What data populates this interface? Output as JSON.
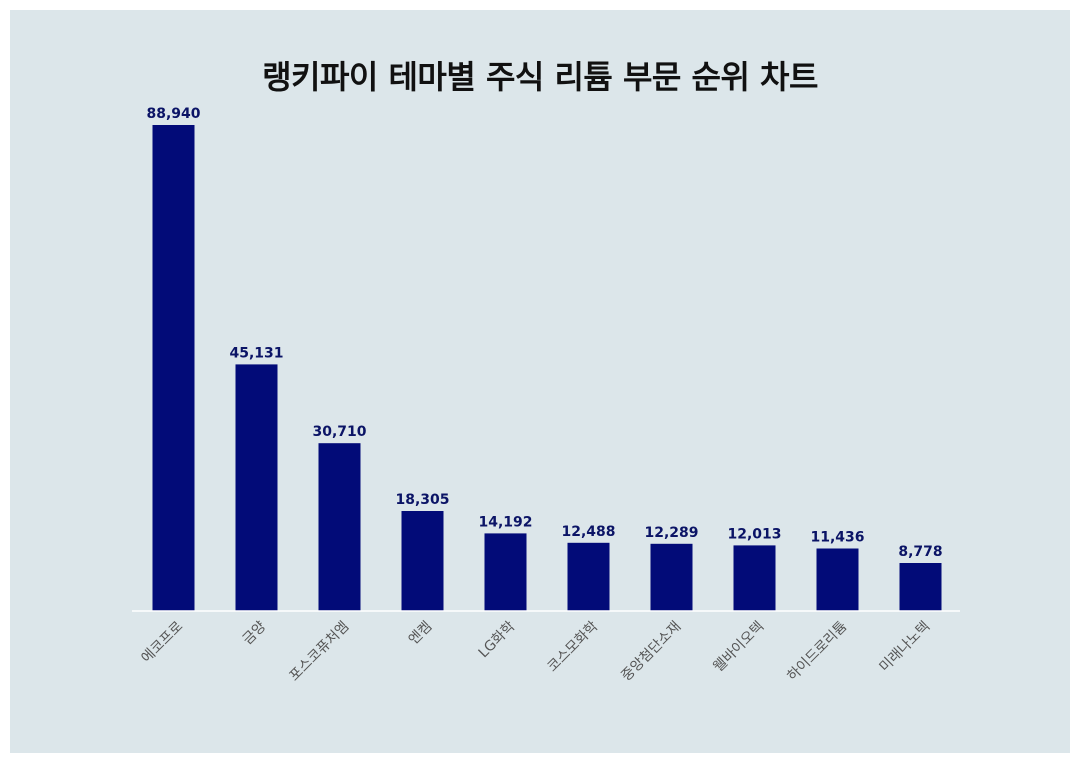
{
  "chart_data": {
    "type": "bar",
    "title": "랭키파이 테마별 주식 리튬 부문 순위 차트",
    "categories": [
      "에코프로",
      "금양",
      "포스코퓨처엠",
      "엔켐",
      "LG화학",
      "코스모화학",
      "중앙첨단소재",
      "웰바이오텍",
      "하이드로리튬",
      "미래나노텍"
    ],
    "values": [
      88940,
      45131,
      30710,
      18305,
      14192,
      12488,
      12289,
      12013,
      11436,
      8778
    ],
    "value_labels": [
      "88,940",
      "45,131",
      "30,710",
      "18,305",
      "14,192",
      "12,488",
      "12,289",
      "12,013",
      "11,436",
      "8,778"
    ],
    "xlabel": "",
    "ylabel": "",
    "ylim": [
      0,
      88940
    ],
    "grid": false,
    "legend": "none",
    "colors": {
      "bar": "#020b78",
      "background": "#dce6ea",
      "axis": "#ffffff"
    }
  }
}
